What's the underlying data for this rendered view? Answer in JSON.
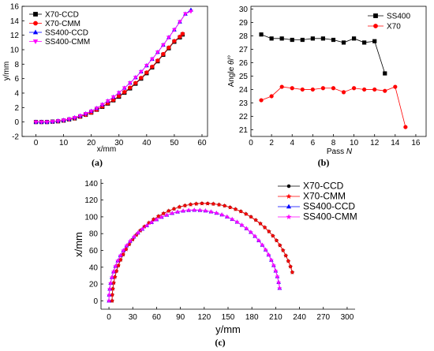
{
  "colors": {
    "x70_ccd": "#000000",
    "x70_cmm": "#ff0000",
    "ss400_ccd": "#0000ff",
    "ss400_cmm": "#ff00ff",
    "ss400": "#000000",
    "x70": "#ff0000"
  },
  "chart_data": [
    {
      "panel": "(a)",
      "type": "line",
      "xlabel": "x/mm",
      "ylabel": "y/mm",
      "xlim": [
        -5,
        62
      ],
      "ylim": [
        -2,
        16
      ],
      "xticks": [
        0,
        10,
        20,
        30,
        40,
        50,
        60
      ],
      "yticks": [
        -2,
        0,
        2,
        4,
        6,
        8,
        10,
        12,
        14,
        16
      ],
      "legend": "top-left",
      "series": [
        {
          "name": "X70-CCD",
          "marker": "square",
          "color": "#000000",
          "points": [
            [
              0,
              0
            ],
            [
              2,
              0
            ],
            [
              4,
              0
            ],
            [
              6,
              0.05
            ],
            [
              8,
              0.1
            ],
            [
              10,
              0.2
            ],
            [
              12,
              0.35
            ],
            [
              14,
              0.5
            ],
            [
              16,
              0.75
            ],
            [
              18,
              1.0
            ],
            [
              20,
              1.3
            ],
            [
              22,
              1.7
            ],
            [
              24,
              2.1
            ],
            [
              26,
              2.55
            ],
            [
              28,
              3.0
            ],
            [
              30,
              3.5
            ],
            [
              32,
              4.05
            ],
            [
              34,
              4.65
            ],
            [
              36,
              5.3
            ],
            [
              38,
              6.0
            ],
            [
              40,
              6.75
            ],
            [
              42,
              7.55
            ],
            [
              44,
              8.4
            ],
            [
              46,
              9.3
            ],
            [
              48,
              10.2
            ],
            [
              50,
              11.1
            ],
            [
              52,
              11.7
            ],
            [
              53,
              12.1
            ]
          ]
        },
        {
          "name": "X70-CMM",
          "marker": "circle",
          "color": "#ff0000",
          "points": [
            [
              0,
              0
            ],
            [
              2,
              0
            ],
            [
              4,
              0
            ],
            [
              6,
              0.05
            ],
            [
              8,
              0.1
            ],
            [
              10,
              0.2
            ],
            [
              12,
              0.35
            ],
            [
              14,
              0.5
            ],
            [
              16,
              0.75
            ],
            [
              18,
              1.0
            ],
            [
              20,
              1.3
            ],
            [
              22,
              1.7
            ],
            [
              24,
              2.15
            ],
            [
              26,
              2.6
            ],
            [
              28,
              3.05
            ],
            [
              30,
              3.6
            ],
            [
              32,
              4.15
            ],
            [
              34,
              4.75
            ],
            [
              36,
              5.4
            ],
            [
              38,
              6.1
            ],
            [
              40,
              6.85
            ],
            [
              42,
              7.65
            ],
            [
              44,
              8.5
            ],
            [
              46,
              9.4
            ],
            [
              48,
              10.3
            ],
            [
              50,
              11.2
            ],
            [
              52,
              11.8
            ],
            [
              53,
              12.2
            ]
          ]
        },
        {
          "name": "SS400-CCD",
          "marker": "triangle-up",
          "color": "#0000ff",
          "points": [
            [
              0,
              0
            ],
            [
              2,
              0
            ],
            [
              4,
              0
            ],
            [
              6,
              0.05
            ],
            [
              8,
              0.15
            ],
            [
              10,
              0.25
            ],
            [
              12,
              0.4
            ],
            [
              14,
              0.6
            ],
            [
              16,
              0.85
            ],
            [
              18,
              1.15
            ],
            [
              20,
              1.5
            ],
            [
              22,
              1.9
            ],
            [
              24,
              2.4
            ],
            [
              26,
              2.9
            ],
            [
              28,
              3.45
            ],
            [
              30,
              4.05
            ],
            [
              32,
              4.7
            ],
            [
              34,
              5.4
            ],
            [
              36,
              6.15
            ],
            [
              38,
              6.95
            ],
            [
              40,
              7.8
            ],
            [
              42,
              8.7
            ],
            [
              44,
              9.65
            ],
            [
              46,
              10.65
            ],
            [
              48,
              11.7
            ],
            [
              50,
              12.75
            ],
            [
              52,
              13.85
            ],
            [
              54,
              14.95
            ],
            [
              56,
              15.5
            ]
          ]
        },
        {
          "name": "SS400-CMM",
          "marker": "triangle-down",
          "color": "#ff00ff",
          "points": [
            [
              0,
              0
            ],
            [
              2,
              0
            ],
            [
              4,
              0
            ],
            [
              6,
              0.05
            ],
            [
              8,
              0.15
            ],
            [
              10,
              0.25
            ],
            [
              12,
              0.4
            ],
            [
              14,
              0.6
            ],
            [
              16,
              0.85
            ],
            [
              18,
              1.15
            ],
            [
              20,
              1.5
            ],
            [
              22,
              1.9
            ],
            [
              24,
              2.4
            ],
            [
              26,
              2.9
            ],
            [
              28,
              3.45
            ],
            [
              30,
              4.05
            ],
            [
              32,
              4.7
            ],
            [
              34,
              5.4
            ],
            [
              36,
              6.15
            ],
            [
              38,
              6.95
            ],
            [
              40,
              7.8
            ],
            [
              42,
              8.7
            ],
            [
              44,
              9.65
            ],
            [
              46,
              10.65
            ],
            [
              48,
              11.7
            ],
            [
              50,
              12.75
            ],
            [
              52,
              13.85
            ],
            [
              54,
              14.95
            ],
            [
              56,
              15.3
            ]
          ]
        }
      ]
    },
    {
      "panel": "(b)",
      "type": "line",
      "xlabel": "Pass N",
      "ylabel": "Angle θ/°",
      "xlim": [
        0,
        17
      ],
      "ylim": [
        20.5,
        30.2
      ],
      "xticks": [
        0,
        2,
        4,
        6,
        8,
        10,
        12,
        14,
        16
      ],
      "yticks": [
        21,
        22,
        23,
        24,
        25,
        26,
        27,
        28,
        29,
        30
      ],
      "legend": "top-right",
      "series": [
        {
          "name": "SS400",
          "marker": "square",
          "color": "#000000",
          "points": [
            [
              1,
              28.1
            ],
            [
              2,
              27.8
            ],
            [
              3,
              27.8
            ],
            [
              4,
              27.7
            ],
            [
              5,
              27.7
            ],
            [
              6,
              27.8
            ],
            [
              7,
              27.8
            ],
            [
              8,
              27.7
            ],
            [
              9,
              27.5
            ],
            [
              10,
              27.8
            ],
            [
              11,
              27.5
            ],
            [
              12,
              27.6
            ],
            [
              13,
              25.2
            ]
          ]
        },
        {
          "name": "X70",
          "marker": "circle",
          "color": "#ff0000",
          "points": [
            [
              1,
              23.2
            ],
            [
              2,
              23.5
            ],
            [
              3,
              24.2
            ],
            [
              4,
              24.1
            ],
            [
              5,
              24.0
            ],
            [
              6,
              24.0
            ],
            [
              7,
              24.1
            ],
            [
              8,
              24.1
            ],
            [
              9,
              23.8
            ],
            [
              10,
              24.1
            ],
            [
              11,
              24.0
            ],
            [
              12,
              24.0
            ],
            [
              13,
              23.9
            ],
            [
              14,
              24.2
            ],
            [
              15,
              21.2
            ]
          ]
        }
      ]
    },
    {
      "panel": "(c)",
      "type": "line",
      "xlabel": "y/mm",
      "ylabel": "x/mm",
      "xlim": [
        -10,
        310
      ],
      "ylim": [
        -10,
        145
      ],
      "xticks": [
        0,
        30,
        60,
        90,
        120,
        150,
        180,
        210,
        240,
        270,
        300
      ],
      "yticks": [
        0,
        20,
        40,
        60,
        80,
        100,
        120,
        140
      ],
      "legend": "top-right",
      "arcs": [
        {
          "cx": 120,
          "cy": 0,
          "r": 116,
          "sweep_from_deg": 180,
          "sweep_to_deg": 17
        },
        {
          "cx": 108,
          "cy": 0,
          "r": 108,
          "sweep_from_deg": 180,
          "sweep_to_deg": 8
        }
      ],
      "series": [
        {
          "name": "X70-CCD",
          "marker": "dot",
          "color": "#000000",
          "arc": 0
        },
        {
          "name": "X70-CMM",
          "marker": "star",
          "color": "#ff0000",
          "arc": 0
        },
        {
          "name": "SS400-CCD",
          "marker": "triangle-up",
          "color": "#0000ff",
          "arc": 1
        },
        {
          "name": "SS400-CMM",
          "marker": "star",
          "color": "#ff00ff",
          "arc": 1
        }
      ]
    }
  ]
}
